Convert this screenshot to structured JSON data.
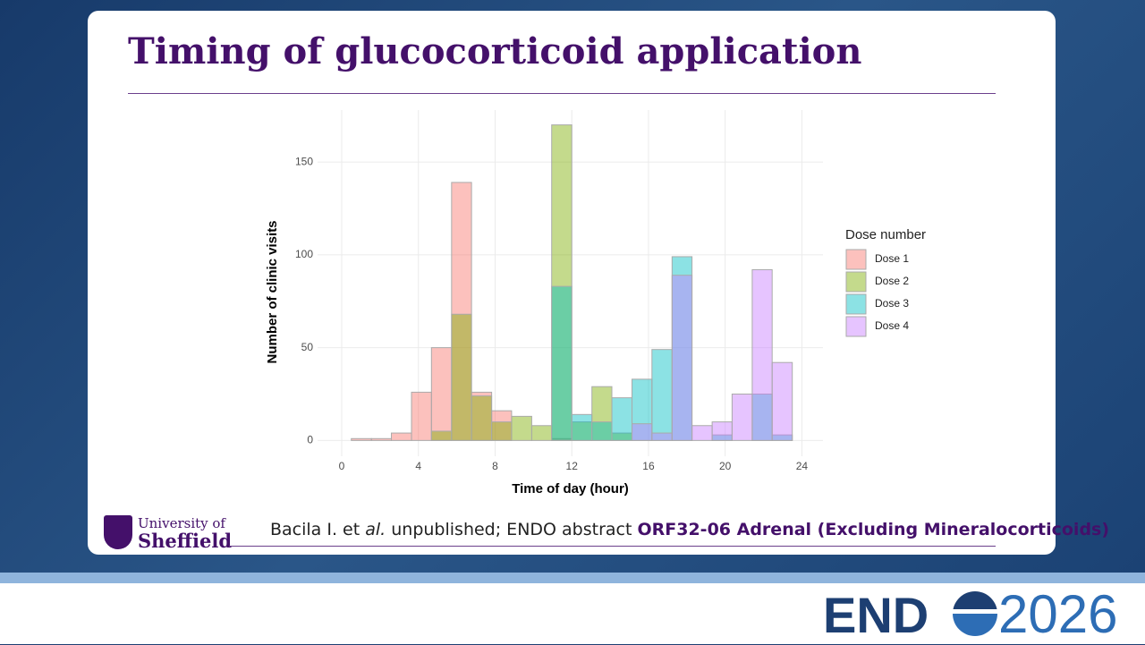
{
  "slide": {
    "title": "Timing of glucocorticoid application",
    "citation": {
      "authors": "Bacila I. et",
      "etal": "al.",
      "middle": "unpublished; ENDO abstract",
      "abstract": "ORF32-06 Adrenal (Excluding Mineralocorticoids)"
    },
    "logo": {
      "line1": "University of",
      "line2": "Sheffield"
    },
    "conference": {
      "name": "END",
      "year": "2026"
    }
  },
  "chart_data": {
    "type": "histogram",
    "x_label": "Time of day (hour)",
    "y_label": "Number of clinic visits",
    "legend_title": "Dose number",
    "legend_position": "right",
    "bins": [
      0.5,
      1.55,
      2.59,
      3.64,
      4.68,
      5.73,
      6.77,
      7.82,
      8.86,
      9.91,
      10.95,
      12.0,
      13.05,
      14.09,
      15.14,
      16.18,
      17.23,
      18.27,
      19.32,
      20.36,
      21.41,
      22.45,
      23.5
    ],
    "series": [
      {
        "name": "Dose 1",
        "color": "#F8766D",
        "values": [
          1,
          1,
          4,
          26,
          50,
          139,
          26,
          16,
          0,
          0,
          1,
          0,
          0,
          0,
          0,
          0,
          0,
          0,
          0,
          0,
          0,
          0
        ]
      },
      {
        "name": "Dose 2",
        "color": "#7CAE00",
        "values": [
          0,
          0,
          0,
          0,
          5,
          68,
          24,
          10,
          13,
          8,
          170,
          10,
          29,
          4,
          0,
          0,
          0,
          0,
          0,
          0,
          0,
          0
        ]
      },
      {
        "name": "Dose 3",
        "color": "#00BFC4",
        "values": [
          0,
          0,
          0,
          0,
          0,
          0,
          0,
          0,
          0,
          0,
          83,
          14,
          10,
          23,
          33,
          49,
          99,
          0,
          3,
          0,
          25,
          3
        ]
      },
      {
        "name": "Dose 4",
        "color": "#C77CFF",
        "values": [
          0,
          0,
          0,
          0,
          0,
          0,
          0,
          0,
          0,
          0,
          0,
          0,
          0,
          0,
          9,
          4,
          89,
          8,
          10,
          25,
          92,
          42
        ]
      }
    ],
    "xlim": [
      -1.26,
      25.1
    ],
    "xticks": [
      0,
      4,
      8,
      12,
      16,
      20,
      24
    ],
    "ylim": [
      -8.5,
      178
    ],
    "yticks": [
      0,
      50,
      100,
      150
    ],
    "grid": true
  }
}
